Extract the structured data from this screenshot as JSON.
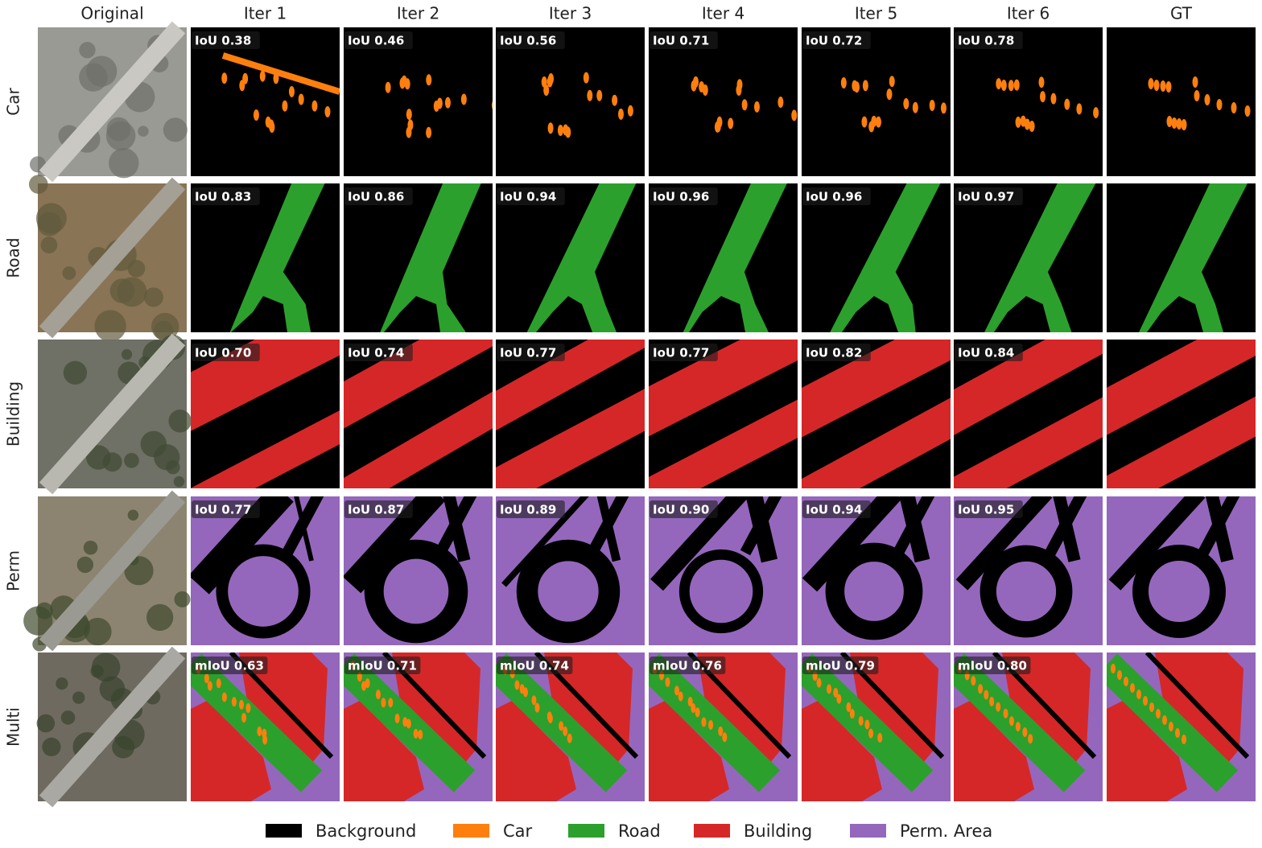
{
  "columns": [
    "Original",
    "Iter 1",
    "Iter 2",
    "Iter 3",
    "Iter 4",
    "Iter 5",
    "Iter 6",
    "GT"
  ],
  "rows": [
    {
      "name": "Car",
      "scores": [
        "IoU 0.38",
        "IoU 0.46",
        "IoU 0.56",
        "IoU 0.71",
        "IoU 0.72",
        "IoU 0.78"
      ]
    },
    {
      "name": "Road",
      "scores": [
        "IoU 0.83",
        "IoU 0.86",
        "IoU 0.94",
        "IoU 0.96",
        "IoU 0.96",
        "IoU 0.97"
      ]
    },
    {
      "name": "Building",
      "scores": [
        "IoU 0.70",
        "IoU 0.74",
        "IoU 0.77",
        "IoU 0.77",
        "IoU 0.82",
        "IoU 0.84"
      ]
    },
    {
      "name": "Perm",
      "scores": [
        "IoU 0.77",
        "IoU 0.87",
        "IoU 0.89",
        "IoU 0.90",
        "IoU 0.94",
        "IoU 0.95"
      ]
    },
    {
      "name": "Multi",
      "scores": [
        "mIoU 0.63",
        "mIoU 0.71",
        "mIoU 0.74",
        "mIoU 0.76",
        "mIoU 0.79",
        "mIoU 0.80"
      ]
    }
  ],
  "legend": [
    {
      "name": "Background",
      "color": "#000000"
    },
    {
      "name": "Car",
      "color": "#ff7f0e"
    },
    {
      "name": "Road",
      "color": "#2ca02c"
    },
    {
      "name": "Building",
      "color": "#d62728"
    },
    {
      "name": "Perm. Area",
      "color": "#9467bd"
    }
  ]
}
